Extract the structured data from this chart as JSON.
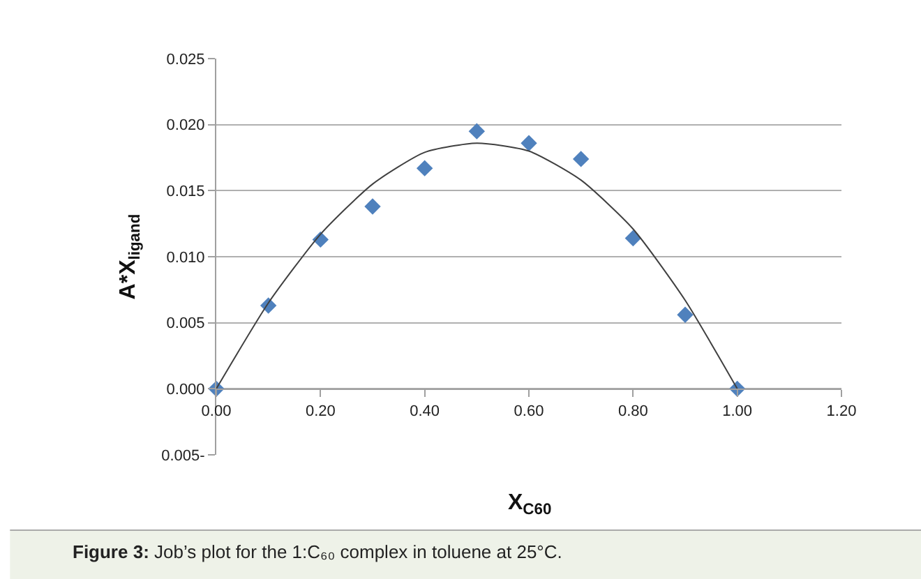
{
  "chart_data": {
    "type": "scatter",
    "xlabel": "X$_{C60}$",
    "ylabel": "A*X$_{ligand}$",
    "annotations": [
      "Figure 3: Job’s plot for the 1:C₆₀ complex in toluene at 25°C."
    ],
    "series": [
      {
        "color": "#4f81bd",
        "marker": "diamond",
        "x": [
          0.0,
          0.1,
          0.2,
          0.3,
          0.4,
          0.5,
          0.6,
          0.7,
          0.8,
          0.9,
          1.0
        ],
        "values": [
          0.0,
          0.0063,
          0.0113,
          0.0138,
          0.0167,
          0.0195,
          0.0186,
          0.0174,
          0.0114,
          0.0056,
          0.0
        ]
      },
      {
        "type": "line",
        "color": "#404040",
        "marker": "none",
        "line_style": "solid",
        "x": [
          0.0,
          0.1,
          0.2,
          0.3,
          0.4,
          0.5,
          0.6,
          0.7,
          0.8,
          0.9,
          1.0
        ],
        "values": [
          0.0,
          0.0065,
          0.0117,
          0.0155,
          0.0179,
          0.0186,
          0.018,
          0.0158,
          0.0121,
          0.0067,
          0.0
        ]
      }
    ],
    "xlim": [
      0.0,
      1.2
    ],
    "xticks": [
      {
        "value": 0.0,
        "label": "0.00"
      },
      {
        "value": 0.2,
        "label": "0.20"
      },
      {
        "value": 0.4,
        "label": "0.40"
      },
      {
        "value": 0.6,
        "label": "0.60"
      },
      {
        "value": 0.8,
        "label": "0.80"
      },
      {
        "value": 1.0,
        "label": "1.00"
      },
      {
        "value": 1.2,
        "label": "1.20"
      }
    ],
    "ylim": [
      -0.005,
      0.025
    ],
    "yticks": [
      {
        "value": -0.005,
        "label": "0.005-"
      },
      {
        "value": 0.0,
        "label": "0.000"
      },
      0.005,
      {
        "value": 0.01,
        "label": "0.010"
      },
      0.015,
      {
        "value": 0.02,
        "label": "0.020"
      },
      0.025
    ],
    "grid": "y"
  }
}
